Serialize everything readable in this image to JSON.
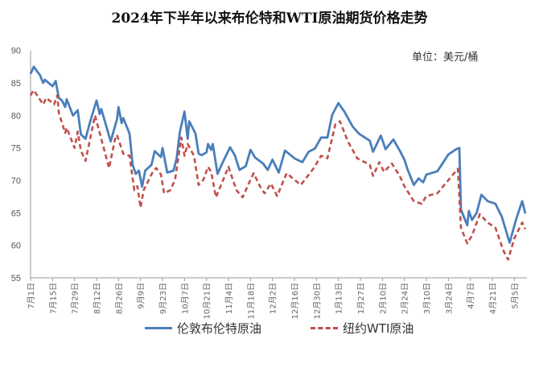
{
  "chart_data": {
    "type": "line",
    "title": "2024年下半年以来布伦特和WTI原油期货价格走势",
    "unit_label": "单位：美元/桶",
    "xlabel": "",
    "ylabel": "",
    "ylim": [
      55,
      90
    ],
    "yticks": [
      55,
      60,
      65,
      70,
      75,
      80,
      85,
      90
    ],
    "xlim": [
      "2024-07-01",
      "2025-05-13"
    ],
    "xticks": [
      "2024-07-01",
      "2024-07-15",
      "2024-07-29",
      "2024-08-12",
      "2024-08-26",
      "2024-09-09",
      "2024-09-23",
      "2024-10-07",
      "2024-10-21",
      "2024-11-04",
      "2024-11-18",
      "2024-12-02",
      "2024-12-16",
      "2024-12-30",
      "2025-01-13",
      "2025-01-27",
      "2025-02-10",
      "2025-02-24",
      "2025-03-10",
      "2025-03-24",
      "2025-04-07",
      "2025-04-21",
      "2025-05-05"
    ],
    "xtick_labels": [
      "7月1日",
      "7月15日",
      "7月29日",
      "8月12日",
      "8月26日",
      "9月9日",
      "9月23日",
      "10月7日",
      "10月21日",
      "11月4日",
      "11月18日",
      "12月2日",
      "12月16日",
      "12月30日",
      "1月13日",
      "1月27日",
      "2月10日",
      "2月24日",
      "3月10日",
      "3月24日",
      "4月7日",
      "4月21日",
      "5月5日"
    ],
    "grid": false,
    "legend_placement": "bottom",
    "series": [
      {
        "name": "伦敦布伦特原油",
        "color": "#4a7ebb",
        "style": "solid",
        "points": [
          [
            "2024-07-01",
            86.4
          ],
          [
            "2024-07-03",
            87.5
          ],
          [
            "2024-07-07",
            86.2
          ],
          [
            "2024-07-09",
            85.0
          ],
          [
            "2024-07-10",
            85.5
          ],
          [
            "2024-07-15",
            84.5
          ],
          [
            "2024-07-17",
            85.3
          ],
          [
            "2024-07-19",
            82.7
          ],
          [
            "2024-07-21",
            82.3
          ],
          [
            "2024-07-23",
            81.3
          ],
          [
            "2024-07-24",
            82.5
          ],
          [
            "2024-07-28",
            80.0
          ],
          [
            "2024-07-31",
            80.8
          ],
          [
            "2024-08-02",
            77.1
          ],
          [
            "2024-08-05",
            76.4
          ],
          [
            "2024-08-08",
            79.1
          ],
          [
            "2024-08-12",
            82.3
          ],
          [
            "2024-08-14",
            80.2
          ],
          [
            "2024-08-15",
            81.0
          ],
          [
            "2024-08-21",
            76.0
          ],
          [
            "2024-08-25",
            79.4
          ],
          [
            "2024-08-26",
            81.3
          ],
          [
            "2024-08-28",
            78.8
          ],
          [
            "2024-08-29",
            79.6
          ],
          [
            "2024-09-02",
            77.2
          ],
          [
            "2024-09-04",
            72.4
          ],
          [
            "2024-09-06",
            71.0
          ],
          [
            "2024-09-08",
            71.5
          ],
          [
            "2024-09-10",
            69.0
          ],
          [
            "2024-09-12",
            71.5
          ],
          [
            "2024-09-16",
            72.4
          ],
          [
            "2024-09-18",
            74.5
          ],
          [
            "2024-09-22",
            73.6
          ],
          [
            "2024-09-23",
            75.0
          ],
          [
            "2024-09-26",
            71.2
          ],
          [
            "2024-09-30",
            71.5
          ],
          [
            "2024-10-02",
            73.4
          ],
          [
            "2024-10-04",
            77.4
          ],
          [
            "2024-10-07",
            80.6
          ],
          [
            "2024-10-09",
            76.4
          ],
          [
            "2024-10-10",
            79.1
          ],
          [
            "2024-10-14",
            77.2
          ],
          [
            "2024-10-16",
            74.1
          ],
          [
            "2024-10-18",
            73.9
          ],
          [
            "2024-10-21",
            74.3
          ],
          [
            "2024-10-22",
            75.6
          ],
          [
            "2024-10-24",
            74.7
          ],
          [
            "2024-10-25",
            75.6
          ],
          [
            "2024-10-28",
            71.0
          ],
          [
            "2024-10-31",
            72.6
          ],
          [
            "2024-11-05",
            75.1
          ],
          [
            "2024-11-08",
            73.9
          ],
          [
            "2024-11-11",
            71.6
          ],
          [
            "2024-11-15",
            72.2
          ],
          [
            "2024-11-18",
            74.7
          ],
          [
            "2024-11-21",
            73.5
          ],
          [
            "2024-11-26",
            72.6
          ],
          [
            "2024-11-29",
            71.6
          ],
          [
            "2024-12-02",
            73.2
          ],
          [
            "2024-12-04",
            72.2
          ],
          [
            "2024-12-06",
            71.2
          ],
          [
            "2024-12-10",
            74.6
          ],
          [
            "2024-12-16",
            73.4
          ],
          [
            "2024-12-21",
            72.8
          ],
          [
            "2024-12-25",
            74.4
          ],
          [
            "2024-12-29",
            74.9
          ],
          [
            "2025-01-02",
            76.6
          ],
          [
            "2025-01-06",
            76.6
          ],
          [
            "2025-01-09",
            80.1
          ],
          [
            "2025-01-13",
            81.9
          ],
          [
            "2025-01-17",
            80.5
          ],
          [
            "2025-01-22",
            78.3
          ],
          [
            "2025-01-26",
            77.2
          ],
          [
            "2025-02-02",
            76.1
          ],
          [
            "2025-02-04",
            74.4
          ],
          [
            "2025-02-09",
            76.9
          ],
          [
            "2025-02-12",
            74.8
          ],
          [
            "2025-02-17",
            76.3
          ],
          [
            "2025-02-21",
            74.6
          ],
          [
            "2025-02-24",
            73.2
          ],
          [
            "2025-02-26",
            71.7
          ],
          [
            "2025-03-02",
            69.3
          ],
          [
            "2025-03-05",
            70.3
          ],
          [
            "2025-03-08",
            69.7
          ],
          [
            "2025-03-10",
            70.9
          ],
          [
            "2025-03-17",
            71.4
          ],
          [
            "2025-03-24",
            74.0
          ],
          [
            "2025-03-29",
            74.8
          ],
          [
            "2025-03-31",
            75.0
          ],
          [
            "2025-04-01",
            65.5
          ],
          [
            "2025-04-05",
            63.1
          ],
          [
            "2025-04-06",
            65.3
          ],
          [
            "2025-04-08",
            63.9
          ],
          [
            "2025-04-11",
            65.0
          ],
          [
            "2025-04-14",
            67.8
          ],
          [
            "2025-04-18",
            66.8
          ],
          [
            "2025-04-23",
            66.4
          ],
          [
            "2025-04-27",
            64.4
          ],
          [
            "2025-05-02",
            60.4
          ],
          [
            "2025-05-06",
            63.9
          ],
          [
            "2025-05-10",
            66.8
          ],
          [
            "2025-05-12",
            64.9
          ]
        ]
      },
      {
        "name": "纽约WTI原油",
        "color": "#c0504d",
        "style": "dashed",
        "points": [
          [
            "2024-07-01",
            83.1
          ],
          [
            "2024-07-03",
            83.9
          ],
          [
            "2024-07-09",
            81.7
          ],
          [
            "2024-07-11",
            82.7
          ],
          [
            "2024-07-16",
            81.7
          ],
          [
            "2024-07-18",
            83.1
          ],
          [
            "2024-07-19",
            80.4
          ],
          [
            "2024-07-23",
            77.3
          ],
          [
            "2024-07-24",
            78.1
          ],
          [
            "2024-07-29",
            75.0
          ],
          [
            "2024-07-31",
            77.5
          ],
          [
            "2024-08-02",
            74.6
          ],
          [
            "2024-08-05",
            73.0
          ],
          [
            "2024-08-11",
            80.0
          ],
          [
            "2024-08-14",
            77.3
          ],
          [
            "2024-08-20",
            71.9
          ],
          [
            "2024-08-24",
            76.6
          ],
          [
            "2024-08-25",
            77.0
          ],
          [
            "2024-08-29",
            74.1
          ],
          [
            "2024-09-02",
            73.8
          ],
          [
            "2024-09-05",
            68.5
          ],
          [
            "2024-09-07",
            69.1
          ],
          [
            "2024-09-09",
            65.8
          ],
          [
            "2024-09-11",
            68.5
          ],
          [
            "2024-09-17",
            71.4
          ],
          [
            "2024-09-19",
            71.9
          ],
          [
            "2024-09-22",
            70.9
          ],
          [
            "2024-09-24",
            68.0
          ],
          [
            "2024-09-28",
            68.5
          ],
          [
            "2024-10-01",
            70.1
          ],
          [
            "2024-10-05",
            76.6
          ],
          [
            "2024-10-07",
            73.8
          ],
          [
            "2024-10-09",
            75.6
          ],
          [
            "2024-10-13",
            73.8
          ],
          [
            "2024-10-16",
            69.3
          ],
          [
            "2024-10-19",
            70.1
          ],
          [
            "2024-10-22",
            72.1
          ],
          [
            "2024-10-24",
            71.3
          ],
          [
            "2024-10-27",
            67.4
          ],
          [
            "2024-10-31",
            69.7
          ],
          [
            "2024-11-04",
            72.1
          ],
          [
            "2024-11-09",
            68.5
          ],
          [
            "2024-11-13",
            67.4
          ],
          [
            "2024-11-18",
            70.1
          ],
          [
            "2024-11-20",
            71.1
          ],
          [
            "2024-11-24",
            69.1
          ],
          [
            "2024-11-27",
            68.0
          ],
          [
            "2024-12-01",
            69.5
          ],
          [
            "2024-12-05",
            67.6
          ],
          [
            "2024-12-11",
            71.1
          ],
          [
            "2024-12-16",
            70.1
          ],
          [
            "2024-12-20",
            69.3
          ],
          [
            "2024-12-28",
            71.8
          ],
          [
            "2025-01-02",
            73.8
          ],
          [
            "2025-01-06",
            73.4
          ],
          [
            "2025-01-11",
            78.6
          ],
          [
            "2025-01-14",
            79.1
          ],
          [
            "2025-01-19",
            76.0
          ],
          [
            "2025-01-25",
            73.4
          ],
          [
            "2025-02-02",
            72.4
          ],
          [
            "2025-02-04",
            70.7
          ],
          [
            "2025-02-08",
            72.8
          ],
          [
            "2025-02-11",
            71.3
          ],
          [
            "2025-02-16",
            72.6
          ],
          [
            "2025-02-21",
            70.7
          ],
          [
            "2025-02-24",
            69.1
          ],
          [
            "2025-03-02",
            66.8
          ],
          [
            "2025-03-07",
            66.4
          ],
          [
            "2025-03-10",
            67.6
          ],
          [
            "2025-03-17",
            68.0
          ],
          [
            "2025-03-30",
            71.8
          ],
          [
            "2025-04-01",
            62.7
          ],
          [
            "2025-04-05",
            60.3
          ],
          [
            "2025-04-08",
            61.5
          ],
          [
            "2025-04-13",
            64.8
          ],
          [
            "2025-04-18",
            63.5
          ],
          [
            "2025-04-23",
            62.7
          ],
          [
            "2025-04-28",
            59.2
          ],
          [
            "2025-05-01",
            57.8
          ],
          [
            "2025-05-05",
            61.1
          ],
          [
            "2025-05-10",
            63.5
          ],
          [
            "2025-05-12",
            62.5
          ]
        ]
      }
    ]
  }
}
